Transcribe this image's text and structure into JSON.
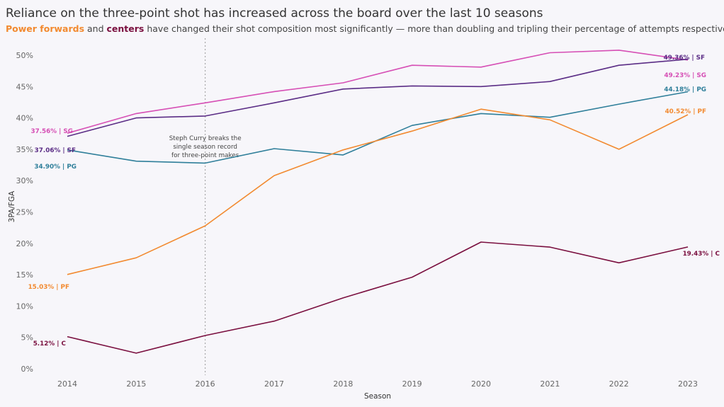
{
  "title": "Reliance on the three-point shot has increased across the board over the last 10 seasons",
  "subtitle": {
    "pf": "Power forwards",
    "and": " and ",
    "c": "centers",
    "rest": " have changed their shot composition most significantly — more than doubling and tripling their percentage of attempts respectively"
  },
  "chart_data": {
    "type": "line",
    "x": [
      2014,
      2015,
      2016,
      2017,
      2018,
      2019,
      2020,
      2021,
      2022,
      2023
    ],
    "xlabel": "Season",
    "ylabel": "3PA/FGA",
    "ylim": [
      0,
      52
    ],
    "yticks": [
      "0%",
      "5%",
      "10%",
      "15%",
      "20%",
      "25%",
      "30%",
      "35%",
      "40%",
      "45%",
      "50%"
    ],
    "grid": false,
    "series": [
      {
        "name": "SG",
        "color": "#d64fb5",
        "values": [
          37.56,
          40.7,
          42.4,
          44.2,
          45.6,
          48.4,
          48.1,
          50.4,
          50.8,
          49.23
        ],
        "first_label": "37.56% | SG",
        "last_label": "49.23% | SG"
      },
      {
        "name": "SF",
        "color": "#5b2d86",
        "values": [
          37.06,
          40.0,
          40.3,
          42.4,
          44.6,
          45.1,
          45.0,
          45.8,
          48.4,
          49.36
        ],
        "first_label": "37.06% | SF",
        "last_label": "49.36% | SF"
      },
      {
        "name": "PG",
        "color": "#2f7f9a",
        "values": [
          34.9,
          33.1,
          32.8,
          35.1,
          34.1,
          38.8,
          40.7,
          40.1,
          42.2,
          44.18
        ],
        "first_label": "34.90% | PG",
        "last_label": "44.18% | PG"
      },
      {
        "name": "PF",
        "color": "#f28a30",
        "values": [
          15.03,
          17.7,
          22.8,
          30.8,
          34.9,
          37.9,
          41.4,
          39.7,
          35.0,
          40.52
        ],
        "first_label": "15.03% | PF",
        "last_label": "40.52% | PF"
      },
      {
        "name": "C",
        "color": "#7a0f3f",
        "values": [
          5.12,
          2.5,
          5.3,
          7.6,
          11.3,
          14.6,
          20.2,
          19.4,
          16.9,
          19.43
        ],
        "first_label": "5.12% | C",
        "last_label": "19.43% | C"
      }
    ],
    "annotation": {
      "x": 2016,
      "lines": [
        "Steph Curry breaks the",
        "single season record",
        "for three-point makes"
      ]
    }
  }
}
